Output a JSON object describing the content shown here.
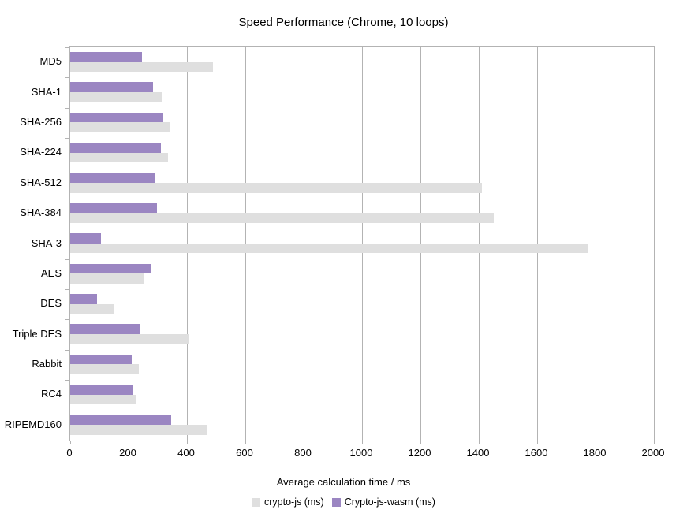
{
  "title": "Speed Performance (Chrome, 10 loops)",
  "chart_data": {
    "type": "bar",
    "orientation": "horizontal",
    "title": "Speed Performance (Chrome, 10 loops)",
    "xlabel": "Average calculation time / ms",
    "ylabel": "",
    "xlim": [
      0,
      2000
    ],
    "x_ticks": [
      0,
      200,
      400,
      600,
      800,
      1000,
      1200,
      1400,
      1600,
      1800,
      2000
    ],
    "grid": "vertical",
    "legend_position": "bottom",
    "categories": [
      "MD5",
      "SHA-1",
      "SHA-256",
      "SHA-224",
      "SHA-512",
      "SHA-384",
      "SHA-3",
      "AES",
      "DES",
      "Triple DES",
      "Rabbit",
      "RC4",
      "RIPEMD160"
    ],
    "series": [
      {
        "name": "crypto-js (ms)",
        "color": "#dfdfdf",
        "values": [
          490,
          315,
          340,
          335,
          1410,
          1450,
          1775,
          250,
          148,
          407,
          234,
          228,
          470
        ]
      },
      {
        "name": "Crypto-js-wasm (ms)",
        "color": "#9b86c2",
        "values": [
          245,
          285,
          320,
          310,
          290,
          298,
          105,
          278,
          92,
          237,
          212,
          216,
          345
        ]
      }
    ]
  },
  "colors": {
    "grid": "#b3b3b3",
    "axis": "#b3b3b3",
    "text": "#000000",
    "background": "#ffffff"
  }
}
